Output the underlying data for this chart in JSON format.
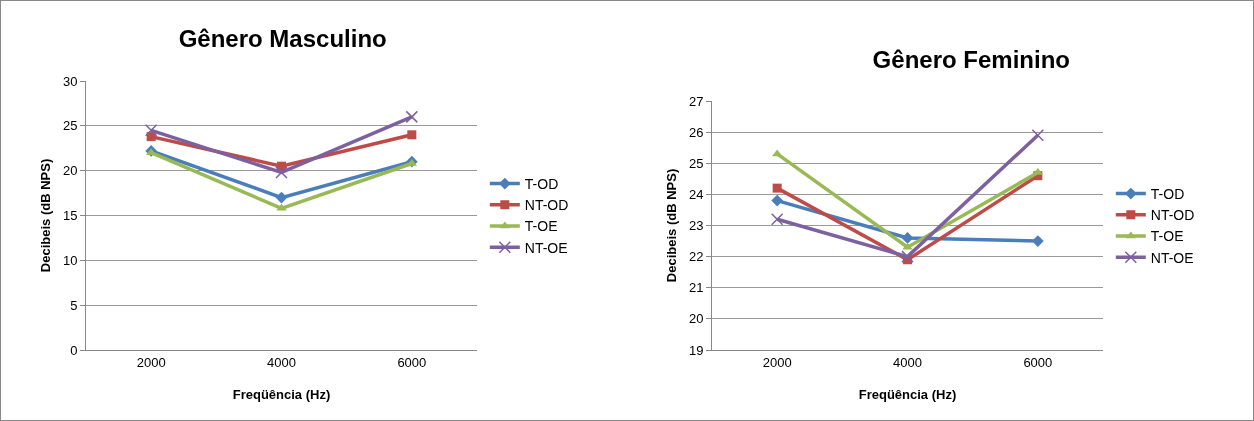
{
  "chart_data": [
    {
      "type": "line",
      "title": "Gênero Masculino",
      "xlabel": "Freqüência (Hz)",
      "ylabel": "Decibeis (dB NPS)",
      "categories": [
        "2000",
        "4000",
        "6000"
      ],
      "ylim": [
        0,
        30
      ],
      "yticks": [
        0,
        5,
        10,
        15,
        20,
        25,
        30
      ],
      "grid": "y",
      "legend": "right",
      "series": [
        {
          "name": "T-OD",
          "color": "#4a7ebb",
          "marker": "diamond",
          "values": [
            22.2,
            17,
            21
          ]
        },
        {
          "name": "NT-OD",
          "color": "#be4b48",
          "marker": "square",
          "values": [
            23.8,
            20.5,
            24
          ]
        },
        {
          "name": "T-OE",
          "color": "#98b954",
          "marker": "triangle",
          "values": [
            22,
            15.8,
            20.8
          ]
        },
        {
          "name": "NT-OE",
          "color": "#7d60a0",
          "marker": "cross",
          "values": [
            24.5,
            19.8,
            26
          ]
        }
      ]
    },
    {
      "type": "line",
      "title": "Gênero Feminino",
      "xlabel": "Freqüência (Hz)",
      "ylabel": "Decibeis (dB NPS)",
      "categories": [
        "2000",
        "4000",
        "6000"
      ],
      "ylim": [
        19,
        27
      ],
      "yticks": [
        19,
        20,
        21,
        22,
        23,
        24,
        25,
        26,
        27
      ],
      "grid": "y",
      "legend": "right",
      "series": [
        {
          "name": "T-OD",
          "color": "#4a7ebb",
          "marker": "diamond",
          "values": [
            23.8,
            22.6,
            22.5
          ]
        },
        {
          "name": "NT-OD",
          "color": "#be4b48",
          "marker": "square",
          "values": [
            24.2,
            21.9,
            24.6
          ]
        },
        {
          "name": "T-OE",
          "color": "#98b954",
          "marker": "triangle",
          "values": [
            25.3,
            22.3,
            24.7
          ]
        },
        {
          "name": "NT-OE",
          "color": "#7d60a0",
          "marker": "cross",
          "values": [
            23.2,
            22.0,
            25.9
          ]
        }
      ]
    }
  ]
}
